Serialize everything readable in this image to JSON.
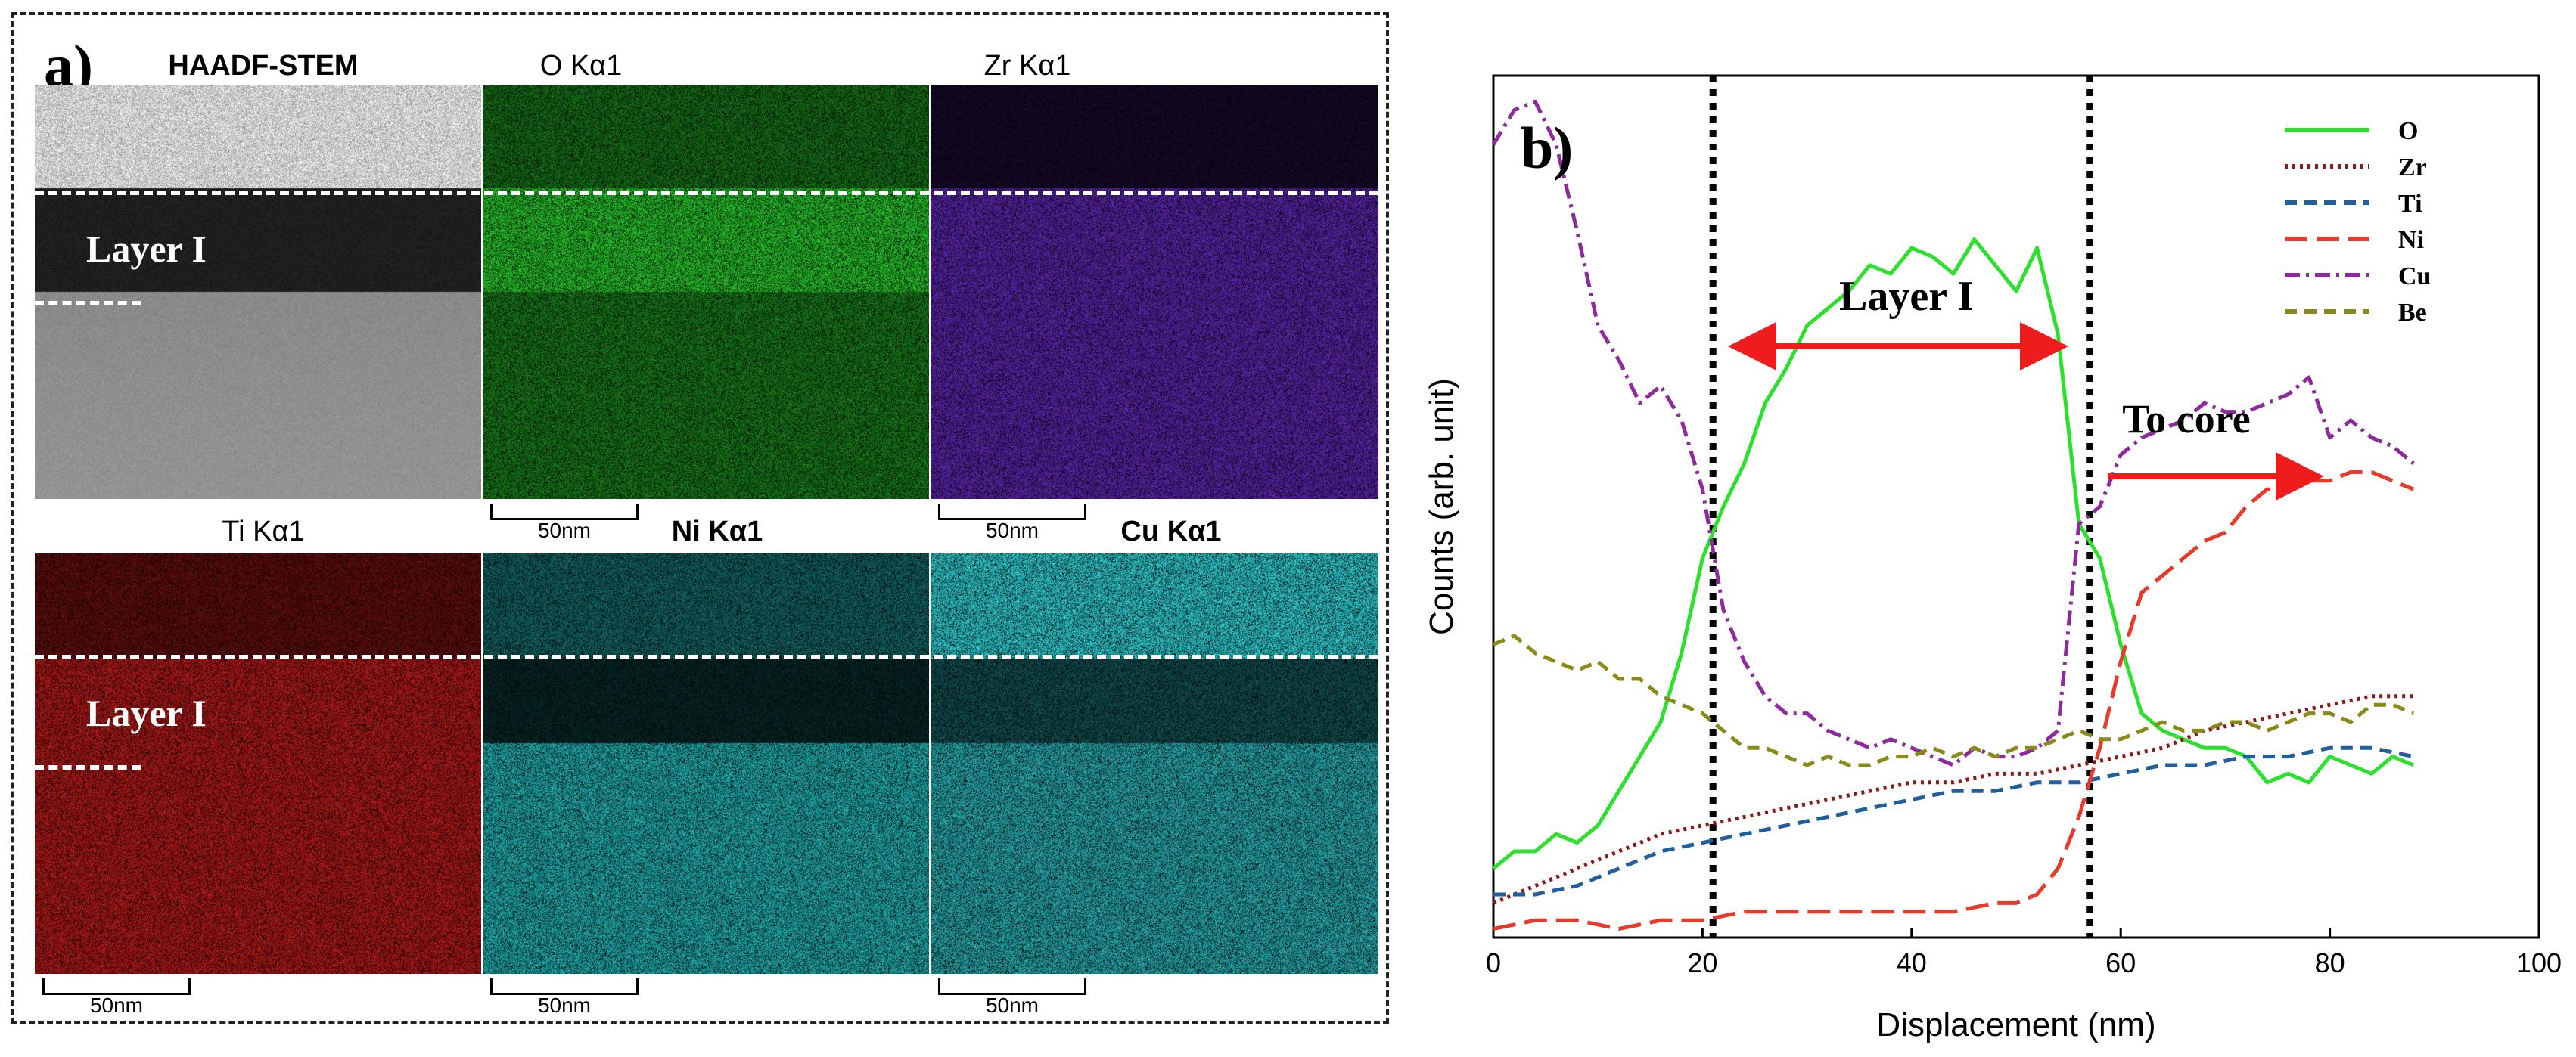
{
  "panel_a": {
    "letter": "a)",
    "tiles": [
      {
        "title": "HAADF-STEM",
        "kind": "haadf"
      },
      {
        "title": "O Kα1",
        "kind": "map",
        "color": "#22b526"
      },
      {
        "title": "Zr Kα1",
        "kind": "map",
        "color": "#6a2bc8"
      },
      {
        "title": "Ti Kα1",
        "kind": "map",
        "color": "#c41c1c"
      },
      {
        "title": "Ni Kα1",
        "kind": "map",
        "color": "#1fb3b3"
      },
      {
        "title": "Cu Kα1",
        "kind": "map",
        "color": "#2cc8cc"
      }
    ],
    "scalebar_label": "50nm",
    "layer_label": "Layer I"
  },
  "chart_data": {
    "type": "line",
    "panel_label": "b)",
    "xlabel": "Displacement (nm)",
    "ylabel": "Counts (arb. unit)",
    "xlim": [
      0,
      100
    ],
    "ylim": [
      0,
      100
    ],
    "xticks": [
      0,
      20,
      40,
      60,
      80,
      100
    ],
    "vlines": [
      21,
      57
    ],
    "annotations": {
      "layer": "Layer I",
      "core": "To core"
    },
    "legend_position": "top-right",
    "series": [
      {
        "name": "O",
        "color": "#2ee02e",
        "dash": "solid",
        "x": [
          0,
          2,
          4,
          6,
          8,
          10,
          12,
          14,
          16,
          18,
          20,
          22,
          24,
          26,
          28,
          30,
          32,
          34,
          36,
          38,
          40,
          42,
          44,
          46,
          48,
          50,
          52,
          54,
          56,
          58,
          60,
          62,
          64,
          66,
          68,
          70,
          72,
          74,
          76,
          78,
          80,
          82,
          84,
          86,
          88
        ],
        "y": [
          8,
          10,
          10,
          12,
          11,
          13,
          17,
          21,
          25,
          33,
          44,
          50,
          55,
          62,
          66,
          71,
          73,
          75,
          78,
          77,
          80,
          79,
          77,
          81,
          78,
          75,
          80,
          70,
          48,
          44,
          34,
          26,
          24,
          23,
          22,
          22,
          21,
          18,
          19,
          18,
          21,
          20,
          19,
          21,
          20
        ]
      },
      {
        "name": "Zr",
        "color": "#8b1a1a",
        "dash": "dot",
        "x": [
          0,
          4,
          8,
          12,
          16,
          20,
          24,
          28,
          32,
          36,
          40,
          44,
          48,
          52,
          56,
          60,
          64,
          68,
          72,
          76,
          80,
          84,
          88
        ],
        "y": [
          4,
          6,
          8,
          10,
          12,
          13,
          14,
          15,
          16,
          17,
          18,
          18,
          19,
          19,
          20,
          21,
          22,
          24,
          25,
          26,
          27,
          28,
          28
        ]
      },
      {
        "name": "Ti",
        "color": "#1f5fa0",
        "dash": "dash",
        "x": [
          0,
          4,
          8,
          12,
          16,
          20,
          24,
          28,
          32,
          36,
          40,
          44,
          48,
          52,
          56,
          60,
          64,
          68,
          72,
          76,
          80,
          84,
          88
        ],
        "y": [
          5,
          5,
          6,
          8,
          10,
          11,
          12,
          13,
          14,
          15,
          16,
          17,
          17,
          18,
          18,
          19,
          20,
          20,
          21,
          21,
          22,
          22,
          21
        ]
      },
      {
        "name": "Ni",
        "color": "#e63a2a",
        "dash": "longdash",
        "x": [
          0,
          4,
          8,
          12,
          16,
          20,
          24,
          28,
          32,
          36,
          40,
          44,
          48,
          50,
          52,
          54,
          56,
          58,
          60,
          62,
          64,
          66,
          68,
          70,
          72,
          74,
          76,
          78,
          80,
          82,
          84,
          86,
          88
        ],
        "y": [
          1,
          2,
          2,
          1,
          2,
          2,
          3,
          3,
          3,
          3,
          3,
          3,
          4,
          4,
          5,
          8,
          14,
          22,
          32,
          40,
          42,
          44,
          46,
          47,
          50,
          52,
          52,
          53,
          53,
          54,
          54,
          53,
          52
        ]
      },
      {
        "name": "Cu",
        "color": "#8e2a9e",
        "dash": "dashdot",
        "x": [
          0,
          2,
          4,
          6,
          8,
          10,
          12,
          14,
          16,
          18,
          20,
          22,
          24,
          26,
          28,
          30,
          32,
          34,
          36,
          38,
          40,
          42,
          44,
          46,
          48,
          50,
          52,
          54,
          56,
          58,
          60,
          62,
          64,
          66,
          68,
          70,
          72,
          74,
          76,
          78,
          80,
          82,
          84,
          86,
          88
        ],
        "y": [
          92,
          96,
          97,
          92,
          82,
          71,
          67,
          62,
          64,
          60,
          52,
          38,
          32,
          28,
          26,
          26,
          24,
          23,
          22,
          23,
          22,
          21,
          20,
          22,
          21,
          21,
          22,
          24,
          48,
          50,
          56,
          58,
          59,
          60,
          62,
          61,
          61,
          62,
          63,
          65,
          58,
          60,
          58,
          57,
          55
        ]
      },
      {
        "name": "Be",
        "color": "#8a8a18",
        "dash": "dash",
        "x": [
          0,
          2,
          4,
          6,
          8,
          10,
          12,
          14,
          16,
          18,
          20,
          22,
          24,
          26,
          28,
          30,
          32,
          34,
          36,
          38,
          40,
          42,
          44,
          46,
          48,
          50,
          52,
          54,
          56,
          58,
          60,
          62,
          64,
          66,
          68,
          70,
          72,
          74,
          76,
          78,
          80,
          82,
          84,
          86,
          88
        ],
        "y": [
          34,
          35,
          33,
          32,
          31,
          32,
          30,
          30,
          28,
          27,
          26,
          24,
          22,
          22,
          21,
          20,
          21,
          20,
          20,
          21,
          21,
          22,
          21,
          22,
          21,
          22,
          22,
          23,
          24,
          23,
          23,
          24,
          25,
          24,
          24,
          25,
          25,
          24,
          25,
          26,
          26,
          25,
          27,
          27,
          26
        ]
      }
    ]
  }
}
